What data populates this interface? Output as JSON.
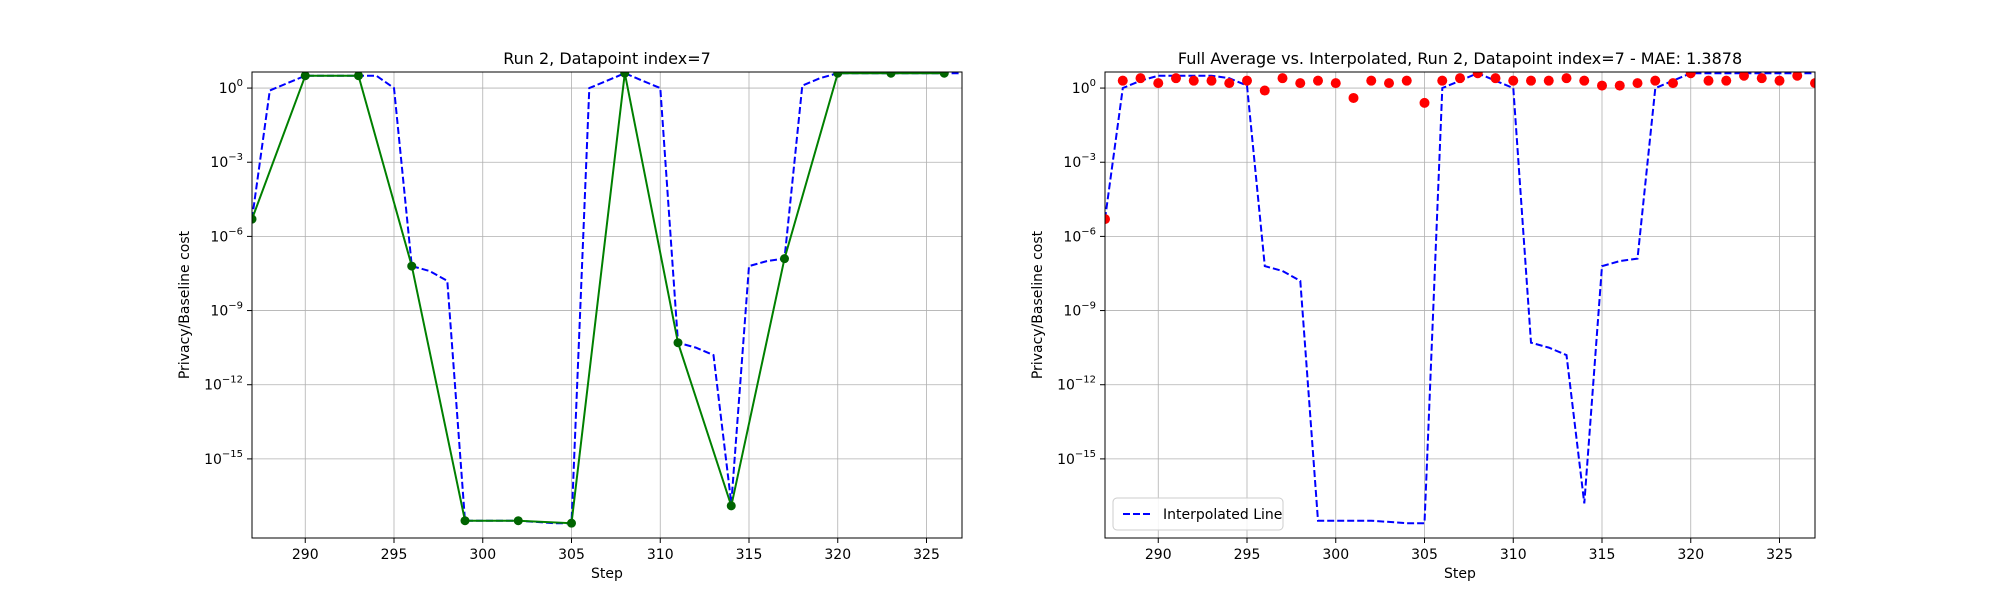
{
  "chart_data": [
    {
      "type": "line",
      "title": "Run 2, Datapoint index=7",
      "xlabel": "Step",
      "ylabel": "Privacy/Baseline cost",
      "xlim": [
        287,
        327
      ],
      "ylim_log10": [
        -18.2,
        0.65
      ],
      "yscale": "log",
      "grid": true,
      "x_ticks": [
        290,
        295,
        300,
        305,
        310,
        315,
        320,
        325
      ],
      "y_tick_exponents": [
        0,
        -3,
        -6,
        -9,
        -12,
        -15
      ],
      "series": [
        {
          "style": "dashed",
          "color": "#0000ff",
          "x": [
            287,
            288,
            289,
            290,
            291,
            292,
            293,
            294,
            295,
            296,
            297,
            298,
            299,
            300,
            301,
            302,
            303,
            304,
            305,
            306,
            307,
            308,
            309,
            310,
            311,
            312,
            313,
            314,
            315,
            316,
            317,
            318,
            319,
            320,
            321,
            322,
            323,
            324,
            325,
            326,
            327
          ],
          "y_log10": [
            -5.3,
            -0.1,
            0.2,
            0.5,
            0.5,
            0.5,
            0.5,
            0.5,
            0.0,
            -7.2,
            -7.4,
            -7.8,
            -17.5,
            -17.5,
            -17.5,
            -17.5,
            -17.55,
            -17.6,
            -17.6,
            0.0,
            0.3,
            0.6,
            0.3,
            0.0,
            -10.3,
            -10.5,
            -10.8,
            -16.8,
            -7.2,
            -7.0,
            -6.9,
            0.1,
            0.4,
            0.6,
            0.6,
            0.6,
            0.6,
            0.6,
            0.6,
            0.6,
            0.6
          ]
        },
        {
          "style": "solid",
          "color": "#008000",
          "marker_color": "#006400",
          "x": [
            287,
            290,
            293,
            296,
            299,
            302,
            305,
            308,
            311,
            314,
            317,
            320,
            323,
            326
          ],
          "y_log10": [
            -5.3,
            0.5,
            0.5,
            -7.2,
            -17.5,
            -17.5,
            -17.6,
            0.6,
            -10.3,
            -16.9,
            -6.9,
            0.6,
            0.6,
            0.6
          ]
        }
      ]
    },
    {
      "type": "line",
      "title": "Full Average vs. Interpolated, Run 2, Datapoint index=7 - MAE: 1.3878",
      "xlabel": "Step",
      "ylabel": "Privacy/Baseline cost",
      "xlim": [
        287,
        327
      ],
      "ylim_log10": [
        -18.2,
        0.65
      ],
      "yscale": "log",
      "grid": true,
      "legend": "lower-left",
      "x_ticks": [
        290,
        295,
        300,
        305,
        310,
        315,
        320,
        325
      ],
      "y_tick_exponents": [
        0,
        -3,
        -6,
        -9,
        -12,
        -15
      ],
      "series": [
        {
          "name": "Interpolated Line",
          "style": "dashed",
          "color": "#0000ff",
          "x": [
            287,
            288,
            289,
            290,
            291,
            292,
            293,
            294,
            295,
            296,
            297,
            298,
            299,
            300,
            301,
            302,
            303,
            304,
            305,
            306,
            307,
            308,
            309,
            310,
            311,
            312,
            313,
            314,
            315,
            316,
            317,
            318,
            319,
            320,
            321,
            322,
            323,
            324,
            325,
            326,
            327
          ],
          "y_log10": [
            -5.3,
            0.0,
            0.3,
            0.5,
            0.5,
            0.5,
            0.5,
            0.4,
            0.1,
            -7.2,
            -7.4,
            -7.8,
            -17.5,
            -17.5,
            -17.5,
            -17.5,
            -17.55,
            -17.6,
            -17.6,
            0.0,
            0.3,
            0.6,
            0.3,
            0.0,
            -10.3,
            -10.5,
            -10.8,
            -16.8,
            -7.2,
            -7.0,
            -6.9,
            0.0,
            0.3,
            0.6,
            0.6,
            0.6,
            0.6,
            0.6,
            0.6,
            0.6,
            0.6
          ]
        },
        {
          "style": "points",
          "color": "#ff0000",
          "x": [
            287,
            288,
            289,
            290,
            291,
            292,
            293,
            294,
            295,
            296,
            297,
            298,
            299,
            300,
            301,
            302,
            303,
            304,
            305,
            306,
            307,
            308,
            309,
            310,
            311,
            312,
            313,
            314,
            315,
            316,
            317,
            318,
            319,
            320,
            321,
            322,
            323,
            324,
            325,
            326,
            327
          ],
          "y_log10": [
            -5.3,
            0.3,
            0.4,
            0.2,
            0.4,
            0.3,
            0.3,
            0.2,
            0.3,
            -0.1,
            0.4,
            0.2,
            0.3,
            0.2,
            -0.4,
            0.3,
            0.2,
            0.3,
            -0.6,
            0.3,
            0.4,
            0.6,
            0.4,
            0.3,
            0.3,
            0.3,
            0.4,
            0.3,
            0.1,
            0.1,
            0.2,
            0.3,
            0.2,
            0.6,
            0.3,
            0.3,
            0.5,
            0.4,
            0.3,
            0.5,
            0.2
          ]
        }
      ]
    }
  ]
}
